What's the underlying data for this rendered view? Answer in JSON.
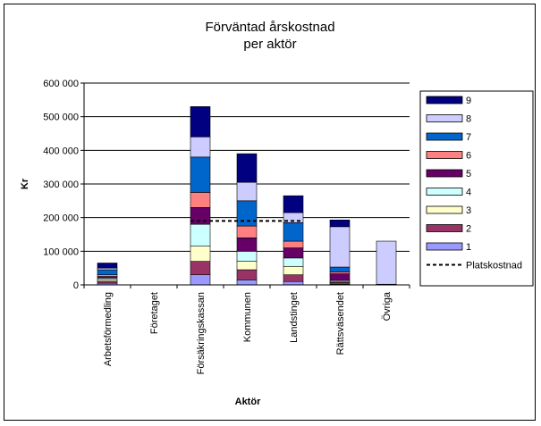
{
  "chart_data": {
    "type": "bar",
    "stacked": true,
    "title_lines": [
      "Förväntad årskostnad",
      "per aktör"
    ],
    "xlabel": "Aktör",
    "ylabel": "Kr",
    "ylim": [
      0,
      600000
    ],
    "yticks": [
      0,
      100000,
      200000,
      300000,
      400000,
      500000,
      600000
    ],
    "ytick_labels": [
      "0",
      "100 000",
      "200 000",
      "300 000",
      "400 000",
      "500 000",
      "600 000"
    ],
    "grid": true,
    "legend_position": "right",
    "categories": [
      "Arbetsförmedling",
      "Företaget",
      "Försäkringskassan",
      "Kommunen",
      "Landstinget",
      "Rättsväsendet",
      "Övriga"
    ],
    "series": [
      {
        "name": "1",
        "color": "#9999ff",
        "values": [
          5000,
          0,
          30000,
          15000,
          10000,
          2000,
          2000
        ]
      },
      {
        "name": "2",
        "color": "#993366",
        "values": [
          5000,
          0,
          40000,
          30000,
          20000,
          5000,
          0
        ]
      },
      {
        "name": "3",
        "color": "#ffffcc",
        "values": [
          5000,
          0,
          45000,
          25000,
          25000,
          3000,
          0
        ]
      },
      {
        "name": "4",
        "color": "#ccffff",
        "values": [
          5000,
          0,
          65000,
          30000,
          25000,
          3000,
          0
        ]
      },
      {
        "name": "5",
        "color": "#660066",
        "values": [
          5000,
          0,
          50000,
          40000,
          30000,
          20000,
          0
        ]
      },
      {
        "name": "6",
        "color": "#ff8080",
        "values": [
          5000,
          0,
          45000,
          35000,
          20000,
          5000,
          0
        ]
      },
      {
        "name": "7",
        "color": "#0066cc",
        "values": [
          15000,
          0,
          105000,
          75000,
          55000,
          15000,
          0
        ]
      },
      {
        "name": "8",
        "color": "#ccccff",
        "values": [
          5000,
          0,
          60000,
          55000,
          30000,
          120000,
          128000
        ]
      },
      {
        "name": "9",
        "color": "#000080",
        "values": [
          15000,
          0,
          90000,
          85000,
          50000,
          20000,
          0
        ]
      }
    ],
    "reference_line": {
      "name": "Platskostnad",
      "value": 190000,
      "from_category": "Försäkringskassan",
      "to_category": "Landstinget",
      "style": "dashed"
    }
  }
}
